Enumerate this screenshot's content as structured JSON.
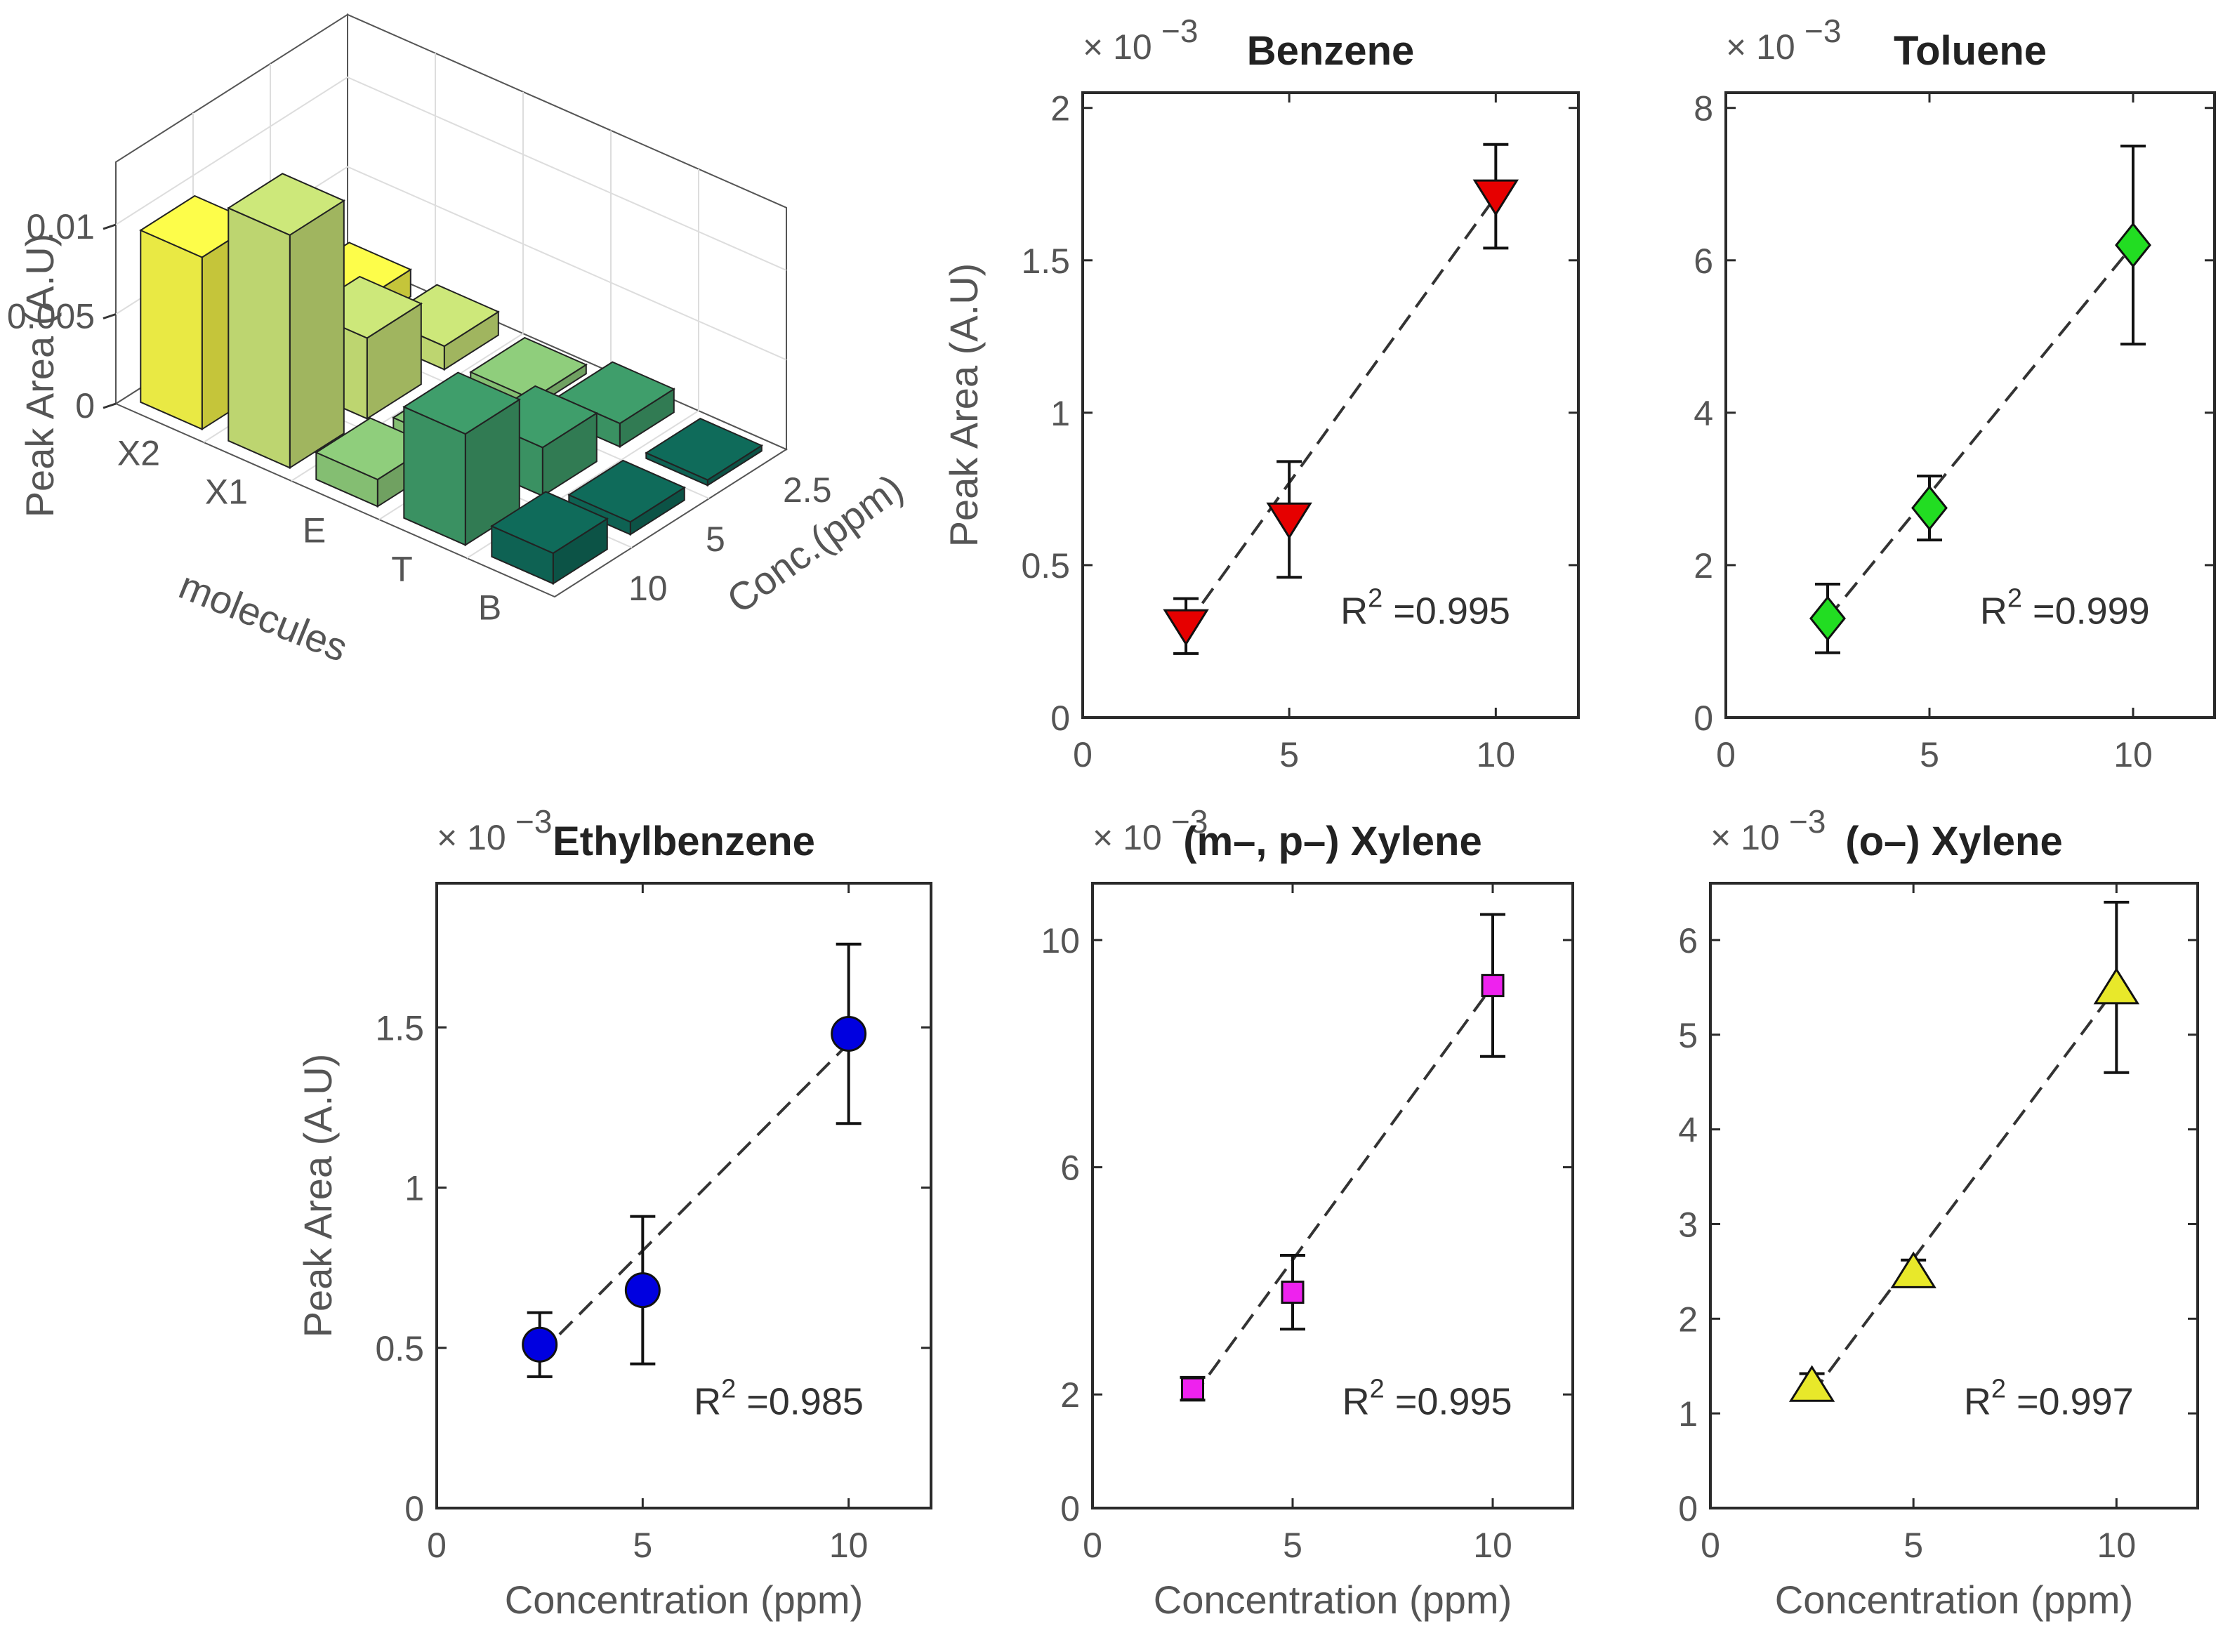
{
  "chart_data": [
    {
      "type": "bar3d",
      "zlabel": "Peak Area (A.U)",
      "xlabel": "molecules",
      "ylabel": "Conc.(ppm)",
      "molecules": [
        "X2",
        "X1",
        "E",
        "T",
        "B"
      ],
      "concentrations": [
        "2.5",
        "5",
        "10"
      ],
      "ztick_labels": [
        "0",
        "0.005",
        "0.01"
      ],
      "zlim": [
        0,
        0.0135
      ],
      "values": [
        [
          0.0015,
          0.005,
          0.0096
        ],
        [
          0.0013,
          0.0045,
          0.013
        ],
        [
          0.0005,
          0.0007,
          0.0015
        ],
        [
          0.0013,
          0.0027,
          0.0062
        ],
        [
          0.0003,
          0.0007,
          0.0017
        ]
      ],
      "colors": [
        "#fdfd4a",
        "#cde87a",
        "#8fce7c",
        "#3f9e6b",
        "#0f6b5a"
      ]
    },
    {
      "type": "scatter",
      "title": "Benzene",
      "multiplier": "× 10",
      "exponent": "−3",
      "xlabel": "",
      "ylabel": "Peak Area (A.U)",
      "xlim": [
        0,
        12
      ],
      "ylim": [
        0,
        2.05
      ],
      "xticks": [
        0,
        5,
        10
      ],
      "xtick_labels": [
        "0",
        "5",
        "10"
      ],
      "yticks": [
        0,
        0.5,
        1,
        1.5,
        2
      ],
      "ytick_labels": [
        "0",
        "0.5",
        "1",
        "1.5",
        "2"
      ],
      "x": [
        2.5,
        5,
        10
      ],
      "y": [
        0.3,
        0.65,
        1.71
      ],
      "err": [
        0.09,
        0.19,
        0.17
      ],
      "fit": [
        [
          2.5,
          0.3
        ],
        [
          10,
          1.71
        ]
      ],
      "marker": "triangle-down",
      "color": "#e60000",
      "r2_label": "R",
      "r2_sup": "2",
      "r2_value": " =0.995"
    },
    {
      "type": "scatter",
      "title": "Toluene",
      "multiplier": "× 10",
      "exponent": "−3",
      "xlabel": "",
      "ylabel": "",
      "xlim": [
        0,
        12
      ],
      "ylim": [
        0,
        8.2
      ],
      "xticks": [
        0,
        5,
        10
      ],
      "xtick_labels": [
        "0",
        "5",
        "10"
      ],
      "yticks": [
        0,
        2,
        4,
        6,
        8
      ],
      "ytick_labels": [
        "0",
        "2",
        "4",
        "6",
        "8"
      ],
      "x": [
        2.5,
        5,
        10
      ],
      "y": [
        1.3,
        2.75,
        6.2
      ],
      "err": [
        0.45,
        0.42,
        1.3
      ],
      "fit": [
        [
          2.5,
          1.3
        ],
        [
          10,
          6.2
        ]
      ],
      "marker": "diamond",
      "color": "#22dd22",
      "r2_label": "R",
      "r2_sup": "2",
      "r2_value": " =0.999"
    },
    {
      "type": "scatter",
      "title": "Ethylbenzene",
      "multiplier": "× 10",
      "exponent": "−3",
      "xlabel": "Concentration  (ppm)",
      "ylabel": "Peak Area (A.U)",
      "xlim": [
        0,
        12
      ],
      "ylim": [
        0,
        1.95
      ],
      "xticks": [
        0,
        5,
        10
      ],
      "xtick_labels": [
        "0",
        "5",
        "10"
      ],
      "yticks": [
        0,
        0.5,
        1,
        1.5
      ],
      "ytick_labels": [
        "0",
        "0.5",
        "1",
        "1.5"
      ],
      "x": [
        2.5,
        5,
        10
      ],
      "y": [
        0.51,
        0.68,
        1.48
      ],
      "err": [
        0.1,
        0.23,
        0.28
      ],
      "fit": [
        [
          2.5,
          0.48
        ],
        [
          10,
          1.45
        ]
      ],
      "marker": "circle",
      "color": "#0000e0",
      "r2_label": "R",
      "r2_sup": "2",
      "r2_value": " =0.985"
    },
    {
      "type": "scatter",
      "title": "(m–, p–) Xylene",
      "multiplier": "× 10",
      "exponent": "−3",
      "xlabel": "Concentration  (ppm)",
      "ylabel": "",
      "xlim": [
        0,
        12
      ],
      "ylim": [
        0,
        11
      ],
      "xticks": [
        0,
        5,
        10
      ],
      "xtick_labels": [
        "0",
        "5",
        "10"
      ],
      "yticks": [
        0,
        2,
        6,
        10
      ],
      "ytick_labels": [
        "0",
        "2",
        "6",
        "10"
      ],
      "x": [
        2.5,
        5,
        10
      ],
      "y": [
        2.1,
        3.8,
        9.2
      ],
      "err": [
        0.2,
        0.65,
        1.25
      ],
      "fit": [
        [
          2.5,
          1.95
        ],
        [
          10,
          9.2
        ]
      ],
      "marker": "square",
      "color": "#ee22ee",
      "r2_label": "R",
      "r2_sup": "2",
      "r2_value": " =0.995"
    },
    {
      "type": "scatter",
      "title": "(o–) Xylene",
      "multiplier": "× 10",
      "exponent": "−3",
      "xlabel": "Concentration  (ppm)",
      "ylabel": "",
      "xlim": [
        0,
        12
      ],
      "ylim": [
        0,
        6.6
      ],
      "xticks": [
        0,
        5,
        10
      ],
      "xtick_labels": [
        "0",
        "5",
        "10"
      ],
      "yticks": [
        0,
        1,
        2,
        3,
        4,
        5,
        6
      ],
      "ytick_labels": [
        "0",
        "1",
        "2",
        "3",
        "4",
        "5",
        "6"
      ],
      "x": [
        2.5,
        5,
        10
      ],
      "y": [
        1.3,
        2.5,
        5.5
      ],
      "err": [
        0.12,
        0.12,
        0.9
      ],
      "fit": [
        [
          2.5,
          1.2
        ],
        [
          10,
          5.5
        ]
      ],
      "marker": "triangle-up",
      "color": "#e8e82a",
      "r2_label": "R",
      "r2_sup": "2",
      "r2_value": " =0.997"
    }
  ]
}
